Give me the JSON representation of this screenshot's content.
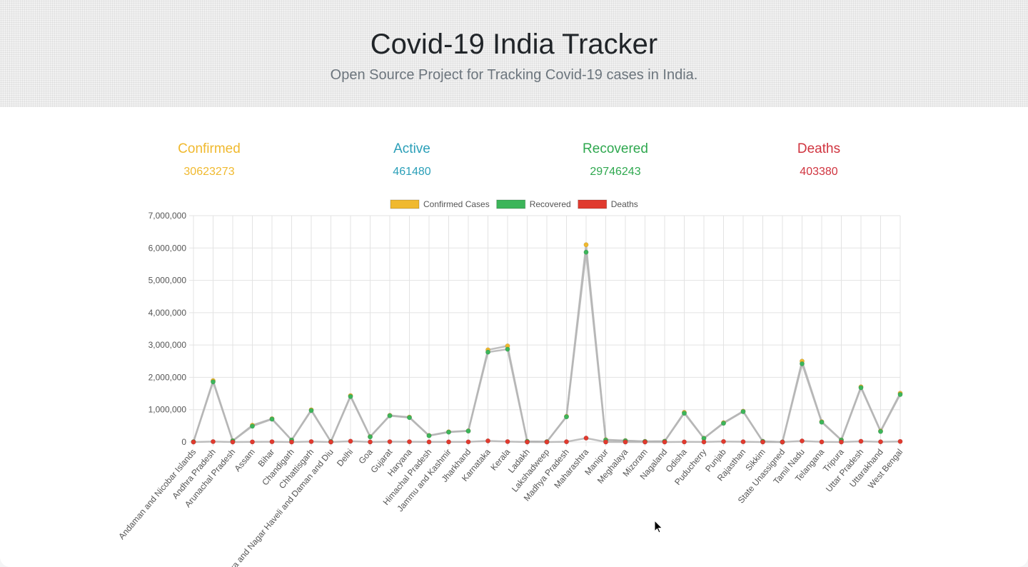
{
  "header": {
    "title": "Covid-19 India Tracker",
    "subtitle": "Open Source Project for Tracking Covid-19 cases in India."
  },
  "stats": {
    "confirmed": {
      "label": "Confirmed",
      "value": "30623273",
      "color": "#f0b92e"
    },
    "active": {
      "label": "Active",
      "value": "461480",
      "color": "#2a9fb8"
    },
    "recovered": {
      "label": "Recovered",
      "value": "29746243",
      "color": "#2fa84f"
    },
    "deaths": {
      "label": "Deaths",
      "value": "403380",
      "color": "#d0343f"
    }
  },
  "chart_data": {
    "type": "line",
    "categories": [
      "Andaman and Nicobar Islands",
      "Andhra Pradesh",
      "Arunachal Pradesh",
      "Assam",
      "Bihar",
      "Chandigarh",
      "Chhattisgarh",
      "Dadra and Nagar Haveli and Daman and Diu",
      "Delhi",
      "Goa",
      "Gujarat",
      "Haryana",
      "Himachal Pradesh",
      "Jammu and Kashmir",
      "Jharkhand",
      "Karnataka",
      "Kerala",
      "Ladakh",
      "Lakshadweep",
      "Madhya Pradesh",
      "Maharashtra",
      "Manipur",
      "Meghalaya",
      "Mizoram",
      "Nagaland",
      "Odisha",
      "Puducherry",
      "Punjab",
      "Rajasthan",
      "Sikkim",
      "State Unassigned",
      "Tamil Nadu",
      "Telangana",
      "Tripura",
      "Uttar Pradesh",
      "Uttarakhand",
      "West Bengal"
    ],
    "series": [
      {
        "name": "Confirmed Cases",
        "color": "#f0b92e",
        "values": [
          7400,
          1900000,
          40000,
          520000,
          720000,
          61000,
          995000,
          10500,
          1434000,
          166000,
          824000,
          769000,
          202000,
          316000,
          346000,
          2850000,
          2970000,
          20000,
          9500,
          791000,
          6100000,
          70000,
          45000,
          20000,
          24000,
          917000,
          117000,
          597000,
          953000,
          21000,
          0,
          2500000,
          628000,
          64000,
          1706000,
          340000,
          1509000
        ]
      },
      {
        "name": "Recovered",
        "color": "#3cb55a",
        "values": [
          7200,
          1860000,
          36000,
          490000,
          707000,
          60000,
          974000,
          10000,
          1407000,
          160000,
          813000,
          756000,
          197000,
          306000,
          340000,
          2780000,
          2870000,
          19700,
          8800,
          780000,
          5870000,
          60000,
          39000,
          16000,
          21000,
          890000,
          112000,
          580000,
          940000,
          18000,
          0,
          2420000,
          614000,
          60000,
          1680000,
          326000,
          1470000
        ]
      },
      {
        "name": "Deaths",
        "color": "#e03a2e",
        "values": [
          127,
          12800,
          200,
          4300,
          9600,
          800,
          13400,
          4,
          25000,
          3000,
          10000,
          9500,
          3500,
          4300,
          5100,
          36000,
          13500,
          200,
          48,
          8500,
          122000,
          1200,
          800,
          100,
          500,
          4000,
          1800,
          16200,
          8900,
          300,
          0,
          33000,
          3700,
          700,
          22600,
          7300,
          17800
        ]
      }
    ],
    "ylim": [
      0,
      7000000
    ],
    "yticks": [
      0,
      1000000,
      2000000,
      3000000,
      4000000,
      5000000,
      6000000,
      7000000
    ],
    "legend_position": "top",
    "grid": true
  }
}
